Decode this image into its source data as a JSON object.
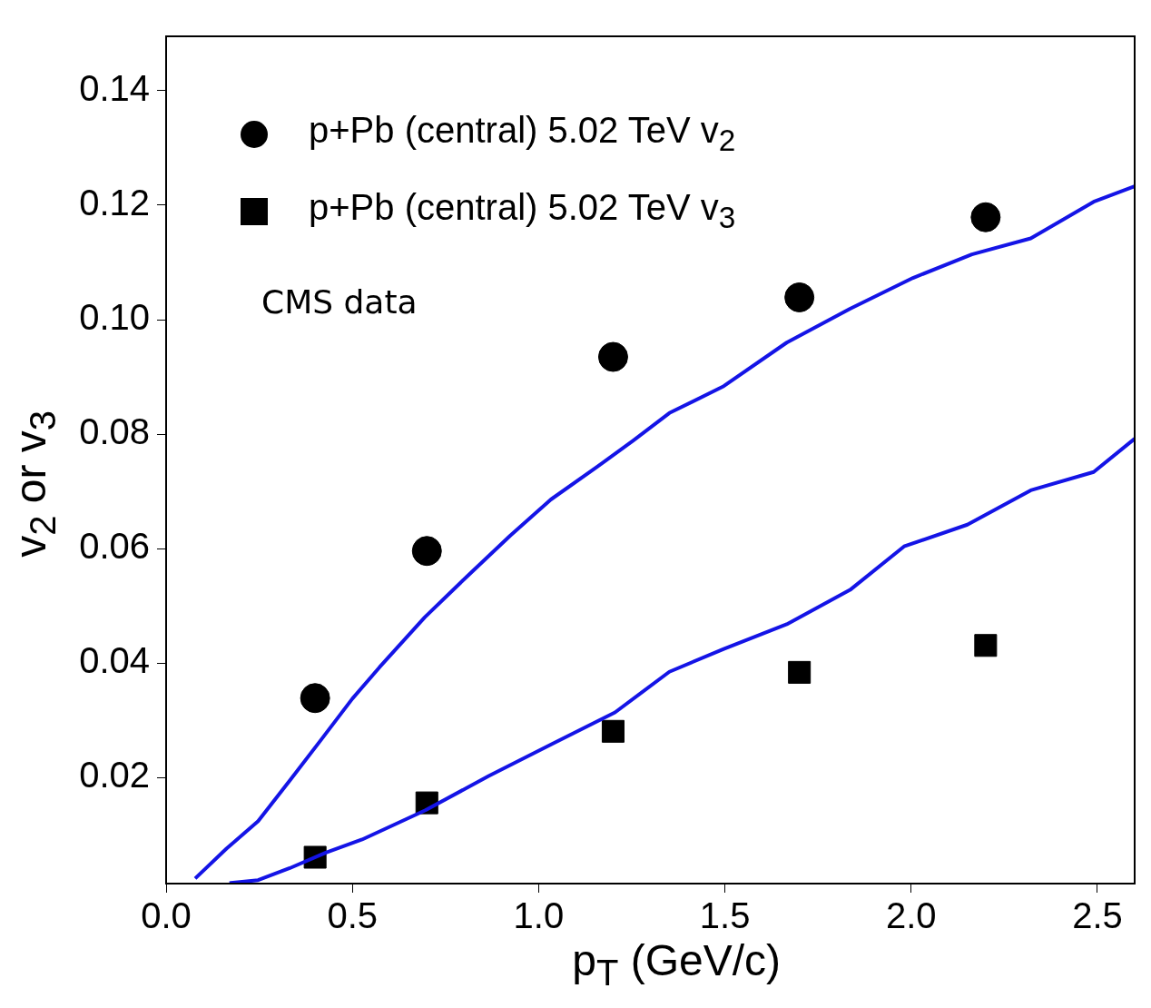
{
  "chart_data": {
    "type": "scatter",
    "xlabel": "p$_{T}$ (GeV/c)",
    "ylabel": "v$_{2}$ or v$_{3}$",
    "xlim": [
      0,
      2.6
    ],
    "ylim": [
      0.0015,
      0.1495
    ],
    "xticks": [
      {
        "value": 0,
        "label": "0.0"
      },
      0.5,
      {
        "value": 1,
        "label": "1.0"
      },
      1.5,
      {
        "value": 2,
        "label": "2.0"
      },
      2.5
    ],
    "yticks": [
      0.02,
      0.04,
      0.06,
      0.08,
      {
        "value": 0.1,
        "label": "0.10"
      },
      0.12,
      0.14
    ],
    "grid": false,
    "legend": "top left",
    "annotations": [
      "CMS data"
    ],
    "series": [
      {
        "name": "p+Pb (central) 5.02 TeV v$_{2}$",
        "marker": "circle",
        "color": "#000000",
        "x": [
          0.4,
          0.7,
          1.2,
          1.7,
          2.2
        ],
        "values": [
          0.0339,
          0.0596,
          0.0935,
          0.1039,
          0.1179
        ]
      },
      {
        "name": "p+Pb (central) 5.02 TeV v$_{3}$",
        "marker": "square",
        "color": "#000000",
        "x": [
          0.4,
          0.7,
          1.2,
          1.7,
          2.2
        ],
        "values": [
          0.0061,
          0.0156,
          0.0281,
          0.0384,
          0.0431
        ]
      },
      {
        "type": "line",
        "marker": "none",
        "color": "#1414e6",
        "x": [
          0.078,
          0.162,
          0.247,
          0.332,
          0.417,
          0.5,
          0.573,
          0.694,
          0.815,
          0.924,
          1.033,
          1.155,
          1.254,
          1.351,
          1.497,
          1.666,
          1.836,
          2.005,
          2.163,
          2.321,
          2.49,
          2.6
        ],
        "values": [
          0.0024,
          0.0076,
          0.0124,
          0.0195,
          0.0267,
          0.0338,
          0.0393,
          0.048,
          0.0556,
          0.0623,
          0.0686,
          0.0742,
          0.0789,
          0.0837,
          0.0884,
          0.096,
          0.1019,
          0.1073,
          0.1114,
          0.1142,
          0.1206,
          0.1233
        ]
      },
      {
        "type": "line",
        "marker": "none",
        "color": "#1414e6",
        "x": [
          0.17,
          0.247,
          0.332,
          0.429,
          0.526,
          0.696,
          0.866,
          1.036,
          1.205,
          1.351,
          1.497,
          1.666,
          1.836,
          1.981,
          2.151,
          2.321,
          2.49,
          2.6
        ],
        "values": [
          0.0016,
          0.0021,
          0.0042,
          0.0069,
          0.0092,
          0.0143,
          0.0203,
          0.0259,
          0.0314,
          0.0385,
          0.0425,
          0.0468,
          0.0528,
          0.0604,
          0.0642,
          0.0702,
          0.0734,
          0.0792
        ]
      }
    ]
  }
}
